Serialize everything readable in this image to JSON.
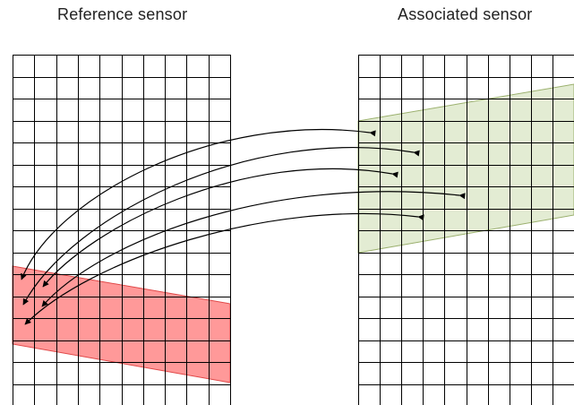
{
  "reference": {
    "title": "Reference sensor"
  },
  "associated": {
    "title": "Associated sensor"
  },
  "colors": {
    "grid_line": "#000000",
    "reference_band_fill": "#ff9999",
    "reference_band_stroke": "#e04848",
    "associated_band_fill": "#e3ecd3",
    "associated_band_stroke": "#9bb06e",
    "arrow": "#000000"
  }
}
